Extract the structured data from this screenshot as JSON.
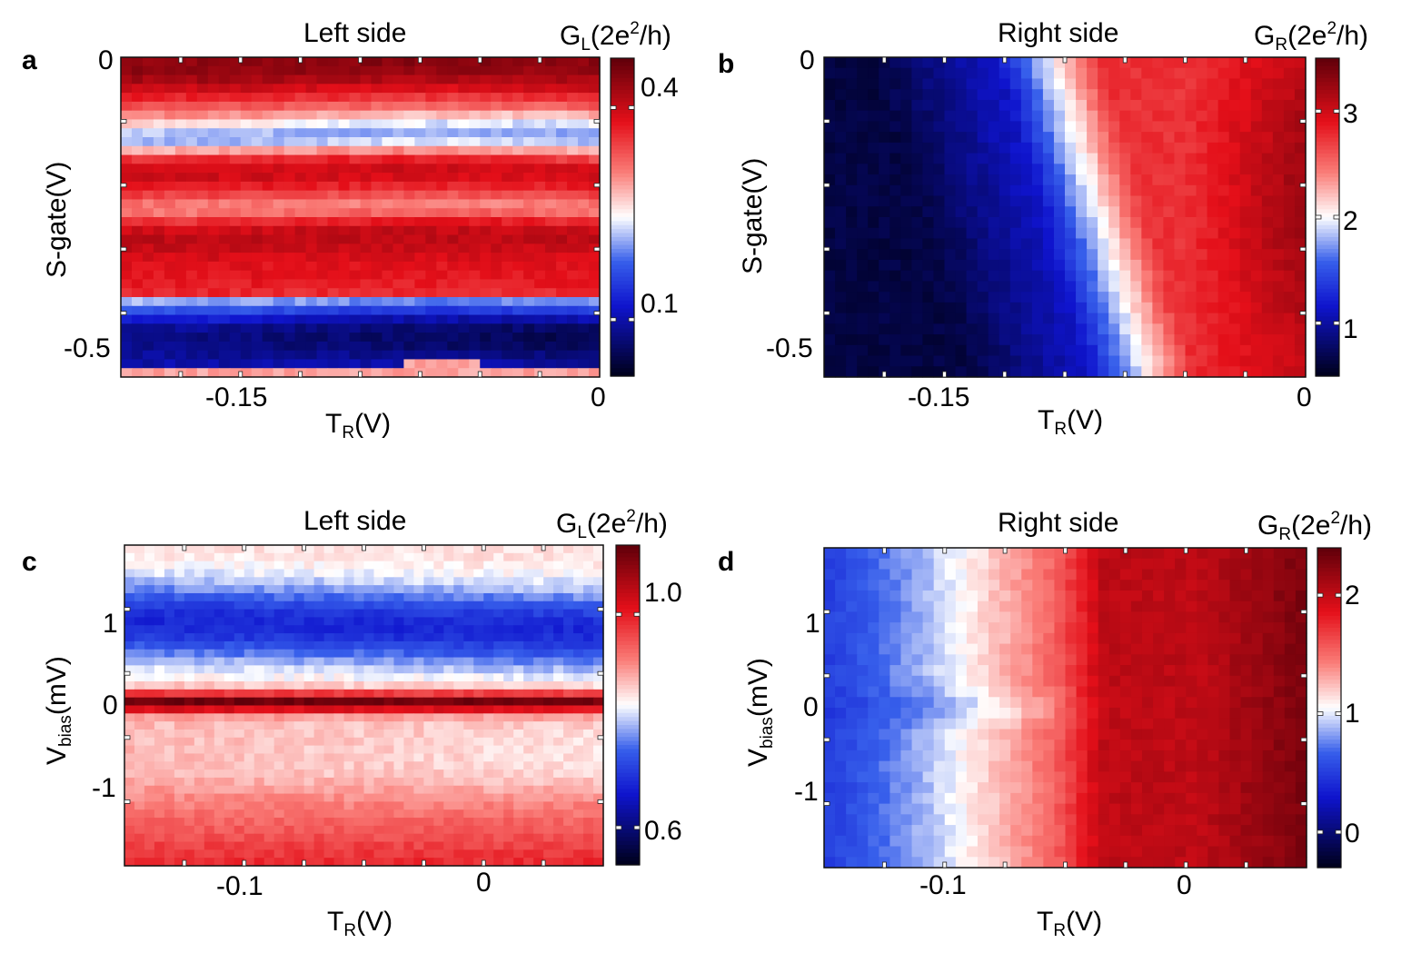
{
  "chart_data": [
    {
      "type": "heatmap",
      "panel": "a",
      "title": "Left side",
      "colorbar_label": {
        "main": "G",
        "sub": "L",
        "unit_a": "(2e",
        "sup": "2",
        "unit_b": "/h)"
      },
      "xlabel": {
        "main": "T",
        "sub": "R",
        "unit": "(V)"
      },
      "ylabel": {
        "main": "S-gate(V)",
        "sub": "",
        "unit": ""
      },
      "xlim": [
        -0.2,
        0
      ],
      "ylim": [
        -0.55,
        0
      ],
      "xticks": [
        {
          "v": -0.15,
          "label": "-0.15"
        },
        {
          "v": 0,
          "label": "0"
        }
      ],
      "yticks": [
        {
          "v": 0,
          "label": "0"
        },
        {
          "v": -0.5,
          "label": "-0.5"
        }
      ],
      "clim": [
        0.02,
        0.47
      ],
      "colorbar_ticks": [
        {
          "v": 0.4,
          "label": "0.4"
        },
        {
          "v": 0.1,
          "label": "0.1"
        }
      ]
    },
    {
      "type": "heatmap",
      "panel": "b",
      "title": "Right side",
      "colorbar_label": {
        "main": "G",
        "sub": "R",
        "unit_a": "(2e",
        "sup": "2",
        "unit_b": "/h)"
      },
      "xlabel": {
        "main": "T",
        "sub": "R",
        "unit": "(V)"
      },
      "ylabel": {
        "main": "S-gate(V)",
        "sub": "",
        "unit": ""
      },
      "xlim": [
        -0.2,
        0
      ],
      "ylim": [
        -0.55,
        0
      ],
      "xticks": [
        {
          "v": -0.15,
          "label": "-0.15"
        },
        {
          "v": 0,
          "label": "0"
        }
      ],
      "yticks": [
        {
          "v": 0,
          "label": "0"
        },
        {
          "v": -0.5,
          "label": "-0.5"
        }
      ],
      "clim": [
        0.5,
        3.5
      ],
      "colorbar_ticks": [
        {
          "v": 3,
          "label": "3"
        },
        {
          "v": 2,
          "label": "2"
        },
        {
          "v": 1,
          "label": "1"
        }
      ]
    },
    {
      "type": "heatmap",
      "panel": "c",
      "title": "Left side",
      "colorbar_label": {
        "main": "G",
        "sub": "L",
        "unit_a": "(2e",
        "sup": "2",
        "unit_b": "/h)"
      },
      "xlabel": {
        "main": "T",
        "sub": "R",
        "unit": "(V)"
      },
      "ylabel": {
        "main": "V",
        "sub": "bias",
        "unit": "(mV)"
      },
      "xlim": [
        -0.15,
        0.05
      ],
      "ylim": [
        -1.9,
        1.9
      ],
      "xticks": [
        {
          "v": -0.1,
          "label": "-0.1"
        },
        {
          "v": 0,
          "label": "0"
        }
      ],
      "yticks": [
        {
          "v": 1,
          "label": "1"
        },
        {
          "v": 0,
          "label": "0"
        },
        {
          "v": -1,
          "label": "-1"
        }
      ],
      "clim": [
        0.53,
        1.13
      ],
      "colorbar_ticks": [
        {
          "v": 1.0,
          "label": "1.0"
        },
        {
          "v": 0.6,
          "label": "0.6"
        }
      ]
    },
    {
      "type": "heatmap",
      "panel": "d",
      "title": "Right side",
      "colorbar_label": {
        "main": "G",
        "sub": "R",
        "unit_a": "(2e",
        "sup": "2",
        "unit_b": "/h)"
      },
      "xlabel": {
        "main": "T",
        "sub": "R",
        "unit": "(V)"
      },
      "ylabel": {
        "main": "V",
        "sub": "bias",
        "unit": "(mV)"
      },
      "xlim": [
        -0.15,
        0.05
      ],
      "ylim": [
        -1.9,
        1.9
      ],
      "xticks": [
        {
          "v": -0.1,
          "label": "-0.1"
        },
        {
          "v": 0,
          "label": "0"
        }
      ],
      "yticks": [
        {
          "v": 1,
          "label": "1"
        },
        {
          "v": 0,
          "label": "0"
        },
        {
          "v": -1,
          "label": "-1"
        }
      ],
      "clim": [
        -0.3,
        2.4
      ],
      "colorbar_ticks": [
        {
          "v": 2,
          "label": "2"
        },
        {
          "v": 1,
          "label": "1"
        },
        {
          "v": 0,
          "label": "0"
        }
      ]
    }
  ]
}
